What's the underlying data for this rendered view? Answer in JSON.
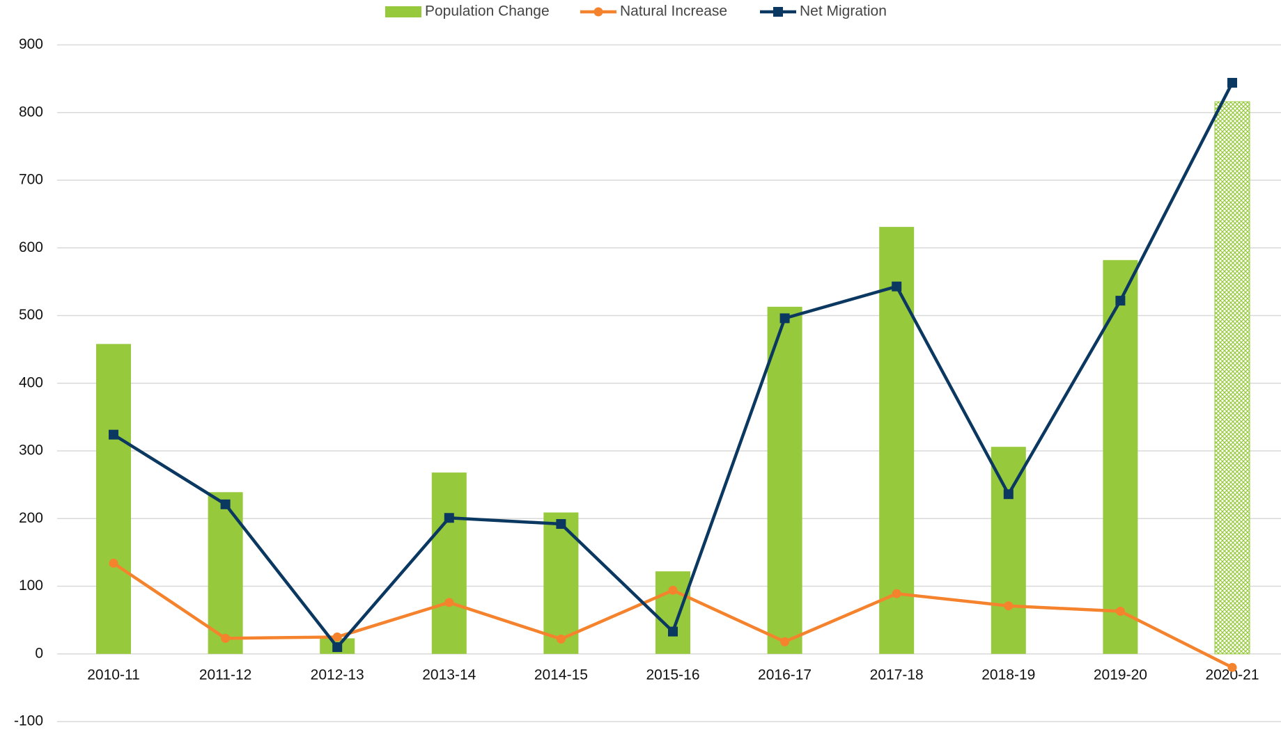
{
  "chart_data": {
    "type": "bar_line",
    "categories": [
      "2010-11",
      "2011-12",
      "2012-13",
      "2013-14",
      "2014-15",
      "2015-16",
      "2016-17",
      "2017-18",
      "2018-19",
      "2019-20",
      "2020-21"
    ],
    "series": [
      {
        "name": "Population Change",
        "type": "bar",
        "color": "#97c93d",
        "values": [
          458,
          239,
          23,
          268,
          209,
          122,
          513,
          631,
          306,
          582,
          816
        ],
        "hatched_indices": [
          10
        ]
      },
      {
        "name": "Natural Increase",
        "type": "line",
        "marker": "circle",
        "color": "#f5832d",
        "values": [
          134,
          23,
          25,
          76,
          22,
          94,
          18,
          89,
          71,
          63,
          -20
        ]
      },
      {
        "name": "Net Migration",
        "type": "line",
        "marker": "square",
        "color": "#0b3861",
        "values": [
          324,
          221,
          10,
          201,
          192,
          33,
          496,
          543,
          236,
          522,
          844
        ]
      }
    ],
    "ylim": [
      -100,
      900
    ],
    "yticks": [
      -100,
      0,
      100,
      200,
      300,
      400,
      500,
      600,
      700,
      800,
      900
    ],
    "grid": true,
    "legend": "top"
  }
}
